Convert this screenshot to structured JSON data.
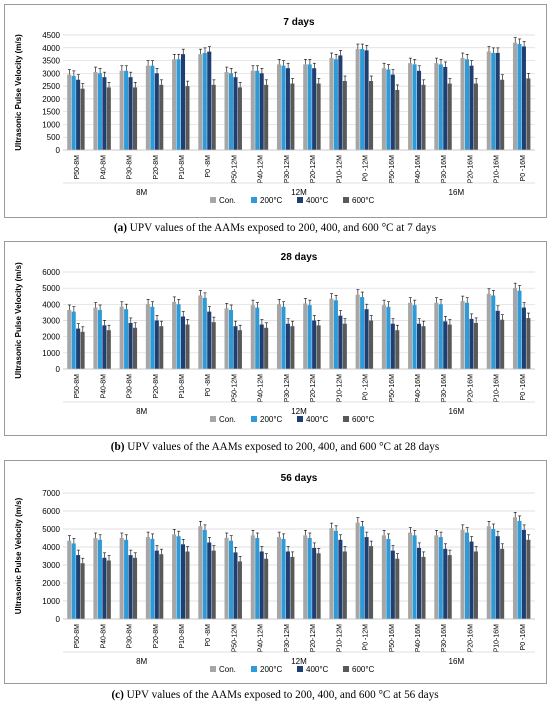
{
  "colors": {
    "Con.": "#a6a6a6",
    "200°C": "#2e9ad7",
    "400°C": "#1f3e72",
    "600°C": "#595959"
  },
  "chart_data": [
    {
      "type": "bar",
      "title": "7 days",
      "ylabel": "Ultrasonic Pulse Velocity (m/s)",
      "ylim": [
        0,
        4500
      ],
      "yticks": [
        0,
        500,
        1000,
        1500,
        2000,
        2500,
        3000,
        3500,
        4000,
        4500
      ],
      "categories": [
        "P50-8M",
        "P40-8M",
        "P30-8M",
        "P20-8M",
        "P10-8M",
        "P0 -8M",
        "P50-12M",
        "P40-12M",
        "P30-12M",
        "P20-12M",
        "P10-12M",
        "P0 -12M",
        "P50-16M",
        "P40-16M",
        "P30-16M",
        "P20-16M",
        "P10-16M",
        "P0 -16M"
      ],
      "groups": [
        "8M",
        "12M",
        "16M"
      ],
      "legend": "bottom",
      "series": [
        {
          "name": "Con.",
          "values": [
            2950,
            3050,
            3100,
            3300,
            3550,
            3750,
            3050,
            3100,
            3350,
            3350,
            3600,
            3950,
            3200,
            3400,
            3400,
            3600,
            3850,
            4200
          ]
        },
        {
          "name": "200°C",
          "values": [
            2900,
            3000,
            3100,
            3300,
            3550,
            3800,
            3000,
            3100,
            3300,
            3350,
            3550,
            3950,
            3150,
            3350,
            3350,
            3550,
            3800,
            4150
          ]
        },
        {
          "name": "400°C",
          "values": [
            2750,
            2850,
            2850,
            3000,
            3750,
            3850,
            2850,
            3000,
            3200,
            3200,
            3700,
            3900,
            2950,
            3100,
            3250,
            3300,
            3800,
            4050
          ]
        },
        {
          "name": "600°C",
          "values": [
            2400,
            2450,
            2450,
            2550,
            2500,
            2550,
            2450,
            2550,
            2600,
            2600,
            2700,
            2700,
            2350,
            2550,
            2600,
            2600,
            2750,
            2800
          ]
        }
      ]
    },
    {
      "type": "bar",
      "title": "28 days",
      "ylabel": "Ultrasonic Pulse Velocity (m/s)",
      "ylim": [
        0,
        6000
      ],
      "yticks": [
        0,
        1000,
        2000,
        3000,
        4000,
        5000,
        6000
      ],
      "categories": [
        "P50-8M",
        "P40-8M",
        "P30-8M",
        "P20-8M",
        "P10-8M",
        "P0 -8M",
        "P50-12M",
        "P40-12M",
        "P30-12M",
        "P20-12M",
        "P10-12M",
        "P0 -12M",
        "P50-16M",
        "P40-16M",
        "P30-16M",
        "P20-16M",
        "P10-16M",
        "P0 -16M"
      ],
      "groups": [
        "8M",
        "12M",
        "16M"
      ],
      "legend": "bottom",
      "series": [
        {
          "name": "Con.",
          "values": [
            3650,
            3800,
            3850,
            4000,
            4150,
            4550,
            3750,
            3950,
            4000,
            4050,
            4350,
            4600,
            3950,
            4100,
            4100,
            4200,
            4650,
            5000
          ]
        },
        {
          "name": "200°C",
          "values": [
            3550,
            3650,
            3700,
            3850,
            4000,
            4400,
            3650,
            3800,
            3850,
            3950,
            4250,
            4450,
            3850,
            3950,
            4000,
            4100,
            4550,
            4850
          ]
        },
        {
          "name": "400°C",
          "values": [
            2500,
            2700,
            2850,
            3000,
            3250,
            3550,
            2650,
            2750,
            2800,
            3000,
            3300,
            3700,
            2800,
            2800,
            2950,
            3100,
            3600,
            3800
          ]
        },
        {
          "name": "600°C",
          "values": [
            2300,
            2400,
            2550,
            2650,
            2750,
            2900,
            2400,
            2550,
            2650,
            2700,
            2800,
            3000,
            2400,
            2650,
            2750,
            2850,
            3050,
            3150
          ]
        }
      ]
    },
    {
      "type": "bar",
      "title": "56 days",
      "ylabel": "Ultrasonic Pulse Velocity (m/s)",
      "ylim": [
        0,
        7000
      ],
      "yticks": [
        0,
        1000,
        2000,
        3000,
        4000,
        5000,
        6000,
        7000
      ],
      "categories": [
        "P50-8M",
        "P40-8M",
        "P30-8M",
        "P20-8M",
        "P10-8M",
        "P0 -8M",
        "P50-12M",
        "P40-12M",
        "P30-12M",
        "P20-12M",
        "P10-12M",
        "P0 -12M",
        "P50-16M",
        "P40-16M",
        "P30-16M",
        "P20-16M",
        "P10-16M",
        "P0 -16M"
      ],
      "groups": [
        "8M",
        "12M",
        "16M"
      ],
      "legend": "bottom",
      "series": [
        {
          "name": "Con.",
          "values": [
            4350,
            4500,
            4500,
            4550,
            4700,
            5150,
            4500,
            4650,
            4550,
            4650,
            5050,
            5350,
            4650,
            4800,
            4650,
            4950,
            5150,
            5650
          ]
        },
        {
          "name": "200°C",
          "values": [
            4200,
            4400,
            4400,
            4450,
            4600,
            4950,
            4350,
            4500,
            4450,
            4500,
            4900,
            5150,
            4450,
            4650,
            4550,
            4800,
            5000,
            5450
          ]
        },
        {
          "name": "400°C",
          "values": [
            3550,
            3400,
            3550,
            3800,
            4150,
            4250,
            3700,
            3750,
            3750,
            3950,
            4400,
            4550,
            3800,
            3950,
            3900,
            4300,
            4600,
            4950
          ]
        },
        {
          "name": "600°C",
          "values": [
            3100,
            3250,
            3400,
            3600,
            3750,
            3800,
            3200,
            3350,
            3450,
            3650,
            3750,
            4050,
            3350,
            3450,
            3550,
            3750,
            3900,
            4400
          ]
        }
      ]
    }
  ],
  "captions": [
    {
      "label": "(a)",
      "text": " UPV values of the AAMs exposed to 200, 400, and 600 °C at 7 days"
    },
    {
      "label": "(b)",
      "text": " UPV values of the AAMs exposed to 200, 400, and 600 °C at 28 days"
    },
    {
      "label": "(c)",
      "text": " UPV values of the AAMs exposed to 200, 400, and 600 °C at 56 days"
    }
  ]
}
